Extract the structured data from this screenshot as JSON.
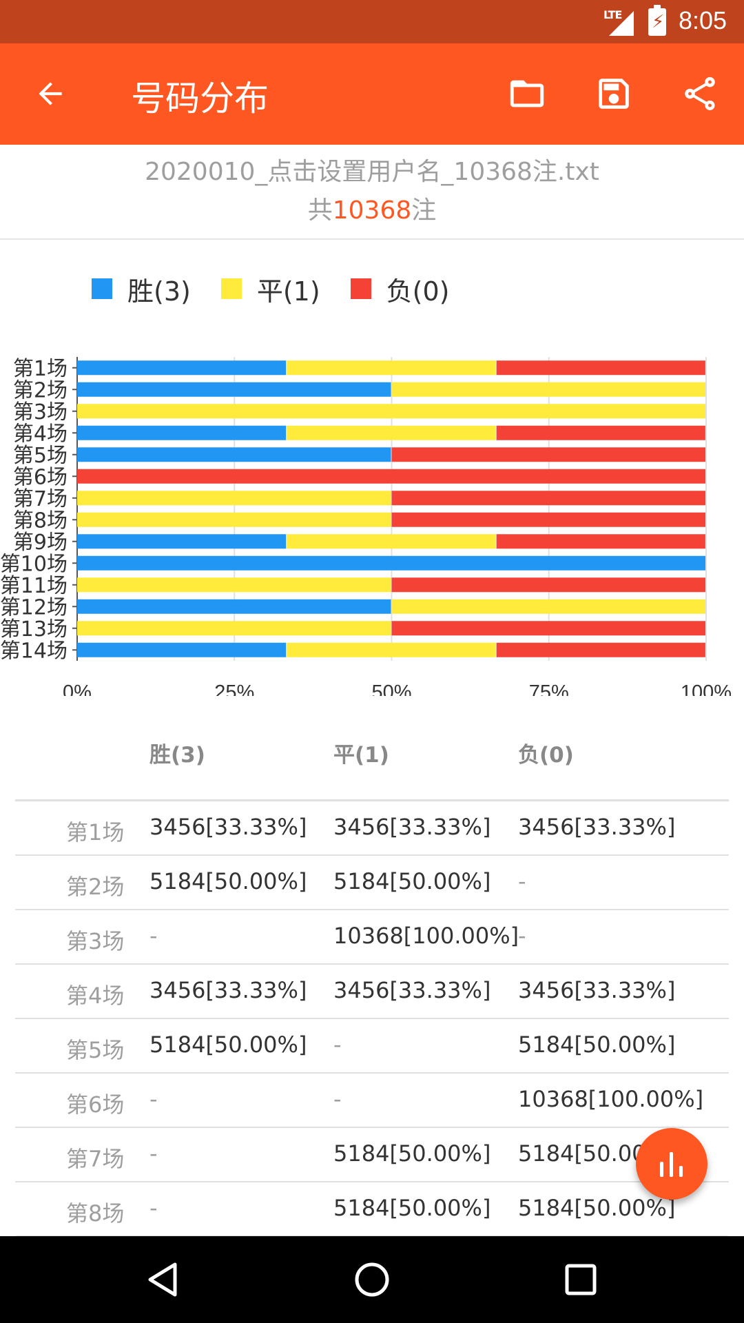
{
  "status_bar": {
    "network": "LTE",
    "time": "8:05"
  },
  "app_bar": {
    "title": "号码分布"
  },
  "file_info": {
    "file_name": "2020010_点击设置用户名_10368注.txt",
    "total_prefix": "共",
    "total_count": "10368",
    "total_suffix": "注"
  },
  "colors": {
    "win": "#2196F3",
    "draw": "#FFEB3B",
    "loss": "#F44336",
    "accent": "#FF5722",
    "status": "#BF431C"
  },
  "legend": [
    {
      "label": "胜(3)",
      "color": "#2196F3"
    },
    {
      "label": "平(1)",
      "color": "#FFEB3B"
    },
    {
      "label": "负(0)",
      "color": "#F44336"
    }
  ],
  "chart_data": {
    "type": "bar",
    "orientation": "horizontal",
    "stacked": true,
    "normalized": true,
    "categories": [
      "第1场",
      "第2场",
      "第3场",
      "第4场",
      "第5场",
      "第6场",
      "第7场",
      "第8场",
      "第9场",
      "第10场",
      "第11场",
      "第12场",
      "第13场",
      "第14场"
    ],
    "series": [
      {
        "name": "胜(3)",
        "color": "#2196F3",
        "values": [
          33.33,
          50,
          0,
          33.33,
          50,
          0,
          0,
          0,
          33.33,
          100,
          0,
          50,
          0,
          33.33
        ]
      },
      {
        "name": "平(1)",
        "color": "#FFEB3B",
        "values": [
          33.33,
          50,
          100,
          33.33,
          0,
          0,
          50,
          50,
          33.33,
          0,
          50,
          50,
          50,
          33.33
        ]
      },
      {
        "name": "负(0)",
        "color": "#F44336",
        "values": [
          33.33,
          0,
          0,
          33.33,
          50,
          100,
          50,
          50,
          33.33,
          0,
          50,
          0,
          50,
          33.33
        ]
      }
    ],
    "x_ticks": [
      "0%",
      "25%",
      "50%",
      "75%",
      "100%"
    ],
    "xlim": [
      0,
      100
    ],
    "grid": true,
    "legend_position": "top-left"
  },
  "table": {
    "headers": [
      "胜(3)",
      "平(1)",
      "负(0)"
    ],
    "rows": [
      {
        "label": "第1场",
        "win": "3456[33.33%]",
        "draw": "3456[33.33%]",
        "loss": "3456[33.33%]"
      },
      {
        "label": "第2场",
        "win": "5184[50.00%]",
        "draw": "5184[50.00%]",
        "loss": "-"
      },
      {
        "label": "第3场",
        "win": "-",
        "draw": "10368[100.00%]",
        "loss": "-"
      },
      {
        "label": "第4场",
        "win": "3456[33.33%]",
        "draw": "3456[33.33%]",
        "loss": "3456[33.33%]"
      },
      {
        "label": "第5场",
        "win": "5184[50.00%]",
        "draw": "-",
        "loss": "5184[50.00%]"
      },
      {
        "label": "第6场",
        "win": "-",
        "draw": "-",
        "loss": "10368[100.00%]"
      },
      {
        "label": "第7场",
        "win": "-",
        "draw": "5184[50.00%]",
        "loss": "5184[50.00%]"
      },
      {
        "label": "第8场",
        "win": "-",
        "draw": "5184[50.00%]",
        "loss": "5184[50.00%]"
      }
    ]
  },
  "icons": {
    "back": "arrow-back-icon",
    "folder": "folder-icon",
    "save": "save-icon",
    "share": "share-icon",
    "fab": "bar-chart-icon",
    "nav_back": "triangle-back-icon",
    "nav_home": "circle-home-icon",
    "nav_recents": "square-recents-icon"
  }
}
